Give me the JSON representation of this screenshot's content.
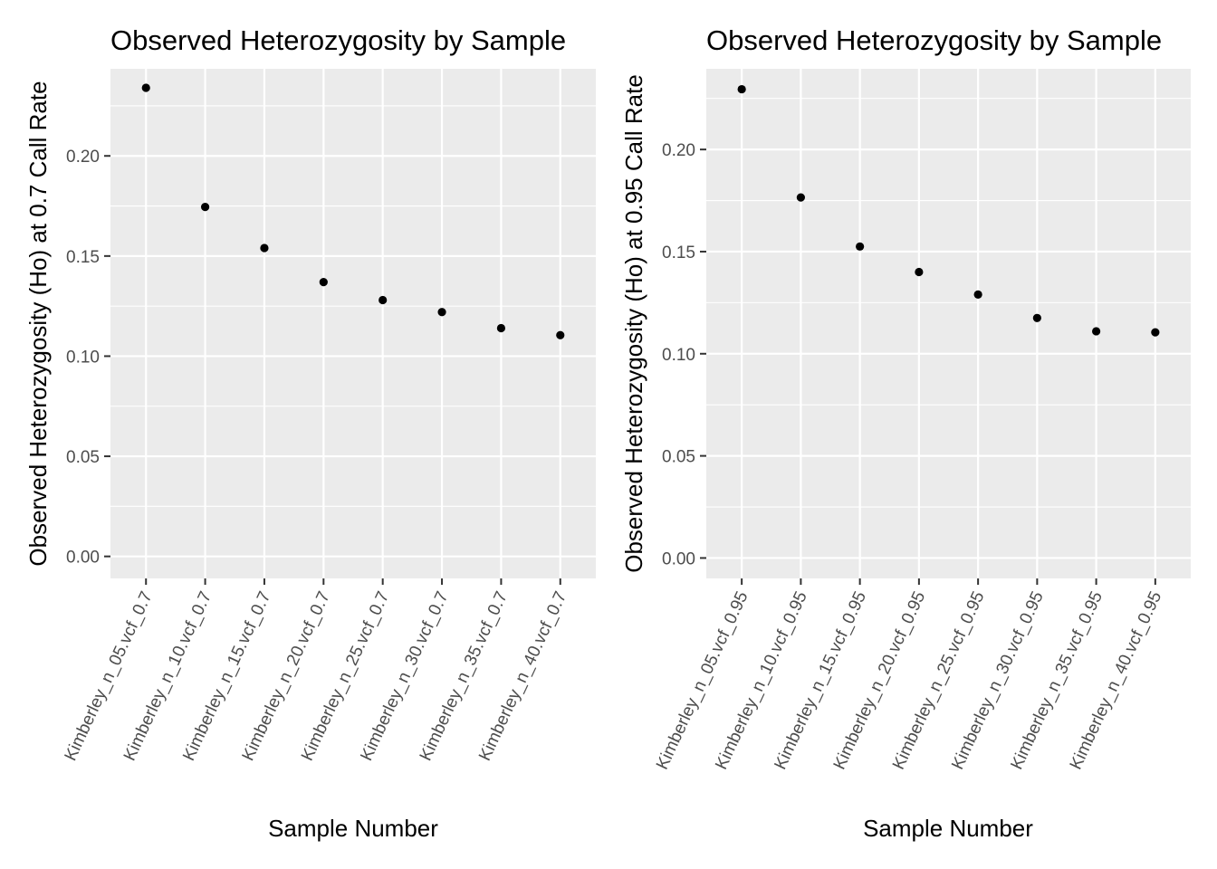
{
  "chart_data": [
    {
      "type": "scatter",
      "title": "Observed Heterozygosity by Sample",
      "xlabel": "Sample Number",
      "ylabel": "Observed Heterozygosity (Ho) at 0.7 Call Rate",
      "categories": [
        "Kimberley_n_05.vcf_0.7",
        "Kimberley_n_10.vcf_0.7",
        "Kimberley_n_15.vcf_0.7",
        "Kimberley_n_20.vcf_0.7",
        "Kimberley_n_25.vcf_0.7",
        "Kimberley_n_30.vcf_0.7",
        "Kimberley_n_35.vcf_0.7",
        "Kimberley_n_40.vcf_0.7"
      ],
      "values": [
        0.234,
        0.1745,
        0.154,
        0.137,
        0.128,
        0.122,
        0.114,
        0.1105
      ],
      "ylim": [
        -0.011,
        0.2435
      ],
      "yticks": [
        0.0,
        0.05,
        0.1,
        0.15,
        0.2
      ],
      "ytick_labels": [
        "0.00",
        "0.05",
        "0.10",
        "0.15",
        "0.20"
      ],
      "grid": true
    },
    {
      "type": "scatter",
      "title": "Observed Heterozygosity by Sample",
      "xlabel": "Sample Number",
      "ylabel": "Observed Heterozygosity (Ho) at 0.95 Call Rate",
      "categories": [
        "Kimberley_n_05.vcf_0.95",
        "Kimberley_n_10.vcf_0.95",
        "Kimberley_n_15.vcf_0.95",
        "Kimberley_n_20.vcf_0.95",
        "Kimberley_n_25.vcf_0.95",
        "Kimberley_n_30.vcf_0.95",
        "Kimberley_n_35.vcf_0.95",
        "Kimberley_n_40.vcf_0.95"
      ],
      "values": [
        0.2295,
        0.1765,
        0.1525,
        0.14,
        0.129,
        0.1175,
        0.111,
        0.1105
      ],
      "ylim": [
        -0.01,
        0.2395
      ],
      "yticks": [
        0.0,
        0.05,
        0.1,
        0.15,
        0.2
      ],
      "ytick_labels": [
        "0.00",
        "0.05",
        "0.10",
        "0.15",
        "0.20"
      ],
      "grid": true
    }
  ]
}
